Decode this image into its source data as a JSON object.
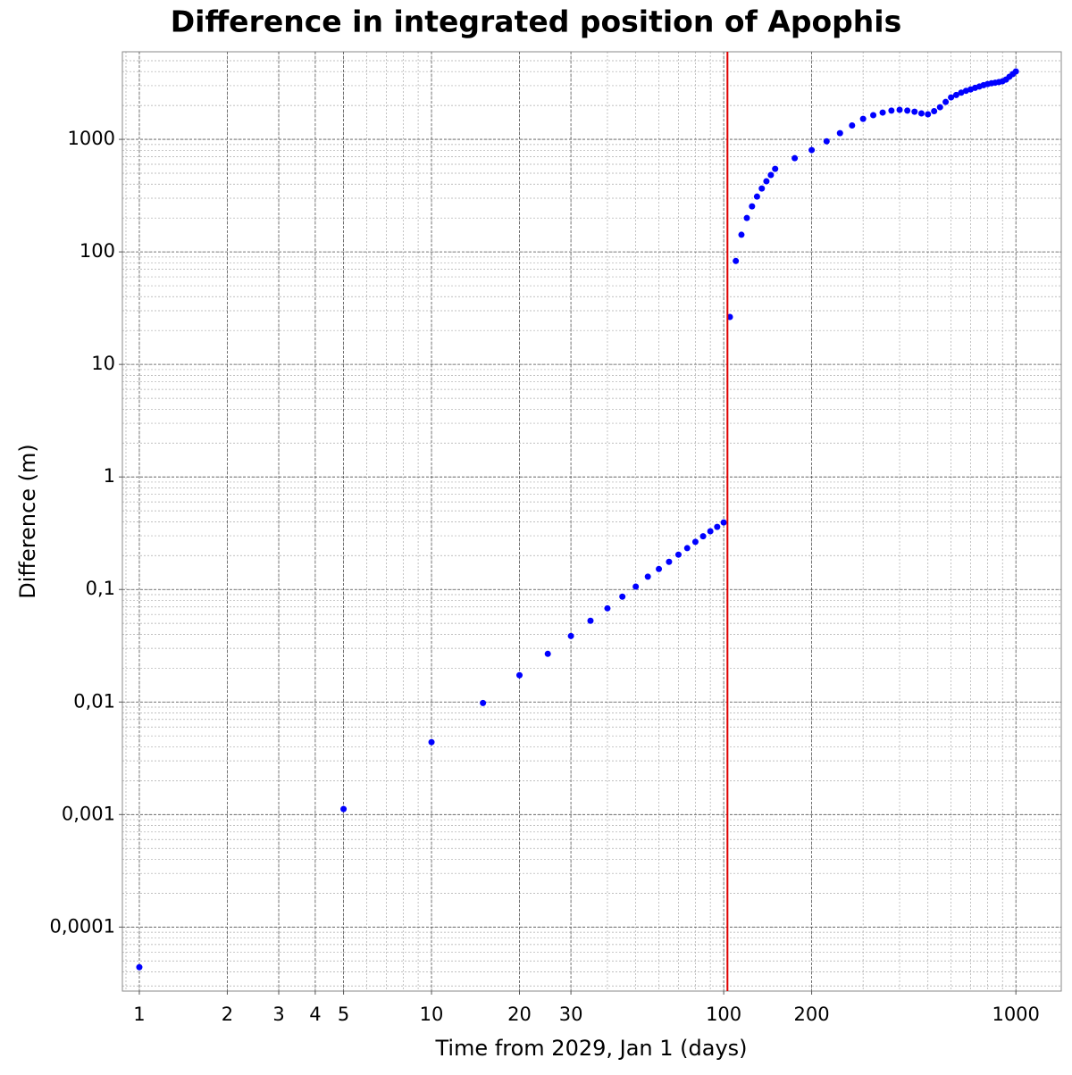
{
  "chart_data": {
    "type": "scatter",
    "title": "Difference in integrated position of Apophis",
    "x_label": "Time from 2029, Jan 1 (days)",
    "y_label": "Difference (m)",
    "x_log": true,
    "y_log": true,
    "grid": true,
    "color": "#0000ff",
    "x": [
      1,
      5,
      10,
      15,
      20,
      25,
      30,
      35,
      40,
      45,
      50,
      55,
      60,
      65,
      70,
      75,
      80,
      85,
      90,
      95,
      100,
      105,
      110,
      115,
      120,
      125,
      130,
      135,
      140,
      145,
      150,
      175,
      200,
      225,
      250,
      275,
      300,
      325,
      350,
      375,
      400,
      425,
      450,
      475,
      500,
      525,
      550,
      575,
      600,
      625,
      650,
      675,
      700,
      725,
      750,
      775,
      800,
      825,
      850,
      875,
      900,
      925,
      950,
      975,
      1000
    ],
    "values": [
      4.4e-05,
      0.00112,
      0.0044,
      0.0098,
      0.0173,
      0.0268,
      0.0386,
      0.0527,
      0.068,
      0.0864,
      0.106,
      0.13,
      0.152,
      0.176,
      0.204,
      0.233,
      0.265,
      0.297,
      0.329,
      0.36,
      0.394,
      26.4,
      83,
      142,
      200,
      254,
      310,
      366,
      424,
      482,
      547,
      680,
      803,
      960,
      1136,
      1330,
      1520,
      1640,
      1730,
      1800,
      1830,
      1800,
      1760,
      1700,
      1670,
      1780,
      1930,
      2150,
      2360,
      2480,
      2600,
      2700,
      2780,
      2870,
      2950,
      3030,
      3100,
      3150,
      3190,
      3230,
      3280,
      3400,
      3600,
      3800,
      4010
    ],
    "vline": {
      "x": 103,
      "color": "#e00000"
    },
    "xlim": [
      0.875,
      1430
    ],
    "ylim": [
      2.7e-05,
      6000
    ],
    "xticks": [
      1,
      2,
      3,
      4,
      5,
      10,
      20,
      30,
      100,
      200,
      1000
    ],
    "yticks": [
      {
        "value": 0.0001,
        "label": "0,0001"
      },
      {
        "value": 0.001,
        "label": "0,001"
      },
      {
        "value": 0.01,
        "label": "0,01"
      },
      {
        "value": 0.1,
        "label": "0,1"
      },
      1,
      10,
      100,
      1000
    ]
  }
}
